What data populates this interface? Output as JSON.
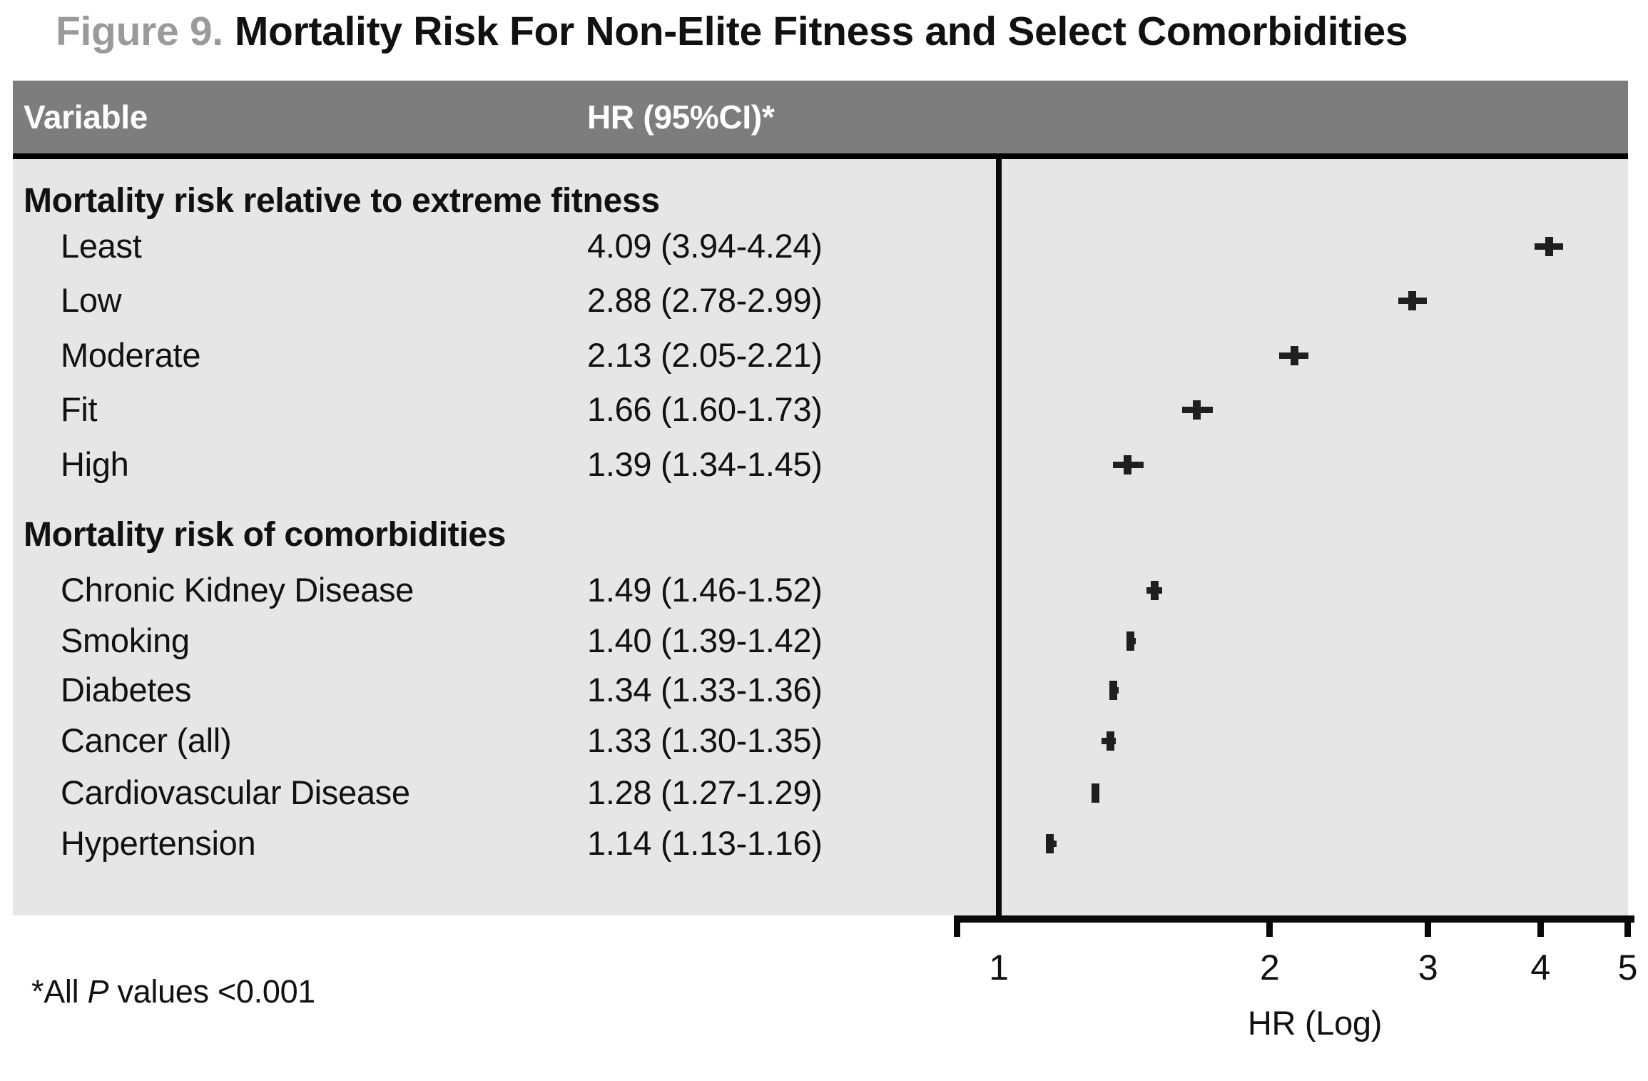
{
  "title": {
    "figure_label": "Figure 9.",
    "text": "Mortality Risk For Non-Elite Fitness and Select Comorbidities"
  },
  "table": {
    "col1_header": "Variable",
    "col2_header": "HR (95%CI)*"
  },
  "footnote": {
    "prefix": "*All ",
    "italic_word": "P",
    "suffix": " values <0.001"
  },
  "chart_data": {
    "type": "scatter",
    "variant": "forest-plot",
    "x_scale": "log10",
    "xlabel": "HR (Log)",
    "xlim": [
      1,
      5
    ],
    "x_ticks": [
      1,
      2,
      3,
      4,
      5
    ],
    "reference_value": 1,
    "grid": "off",
    "sections": [
      {
        "header": "Mortality risk relative to extreme fitness",
        "rows": [
          {
            "label": "Least",
            "hr_text": "4.09 (3.94-4.24)",
            "hr": 4.09,
            "ci_low": 3.94,
            "ci_high": 4.24
          },
          {
            "label": "Low",
            "hr_text": "2.88 (2.78-2.99)",
            "hr": 2.88,
            "ci_low": 2.78,
            "ci_high": 2.99
          },
          {
            "label": "Moderate",
            "hr_text": "2.13 (2.05-2.21)",
            "hr": 2.13,
            "ci_low": 2.05,
            "ci_high": 2.21
          },
          {
            "label": "Fit",
            "hr_text": "1.66 (1.60-1.73)",
            "hr": 1.66,
            "ci_low": 1.6,
            "ci_high": 1.73
          },
          {
            "label": "High",
            "hr_text": "1.39 (1.34-1.45)",
            "hr": 1.39,
            "ci_low": 1.34,
            "ci_high": 1.45
          }
        ]
      },
      {
        "header": "Mortality risk of comorbidities",
        "rows": [
          {
            "label": "Chronic Kidney Disease",
            "hr_text": "1.49 (1.46-1.52)",
            "hr": 1.49,
            "ci_low": 1.46,
            "ci_high": 1.52
          },
          {
            "label": "Smoking",
            "hr_text": "1.40 (1.39-1.42)",
            "hr": 1.4,
            "ci_low": 1.39,
            "ci_high": 1.42
          },
          {
            "label": "Diabetes",
            "hr_text": "1.34 (1.33-1.36)",
            "hr": 1.34,
            "ci_low": 1.33,
            "ci_high": 1.36
          },
          {
            "label": "Cancer (all)",
            "hr_text": "1.33 (1.30-1.35)",
            "hr": 1.33,
            "ci_low": 1.3,
            "ci_high": 1.35
          },
          {
            "label": "Cardiovascular Disease",
            "hr_text": "1.28 (1.27-1.29)",
            "hr": 1.28,
            "ci_low": 1.27,
            "ci_high": 1.29
          },
          {
            "label": "Hypertension",
            "hr_text": "1.14 (1.13-1.16)",
            "hr": 1.14,
            "ci_low": 1.13,
            "ci_high": 1.16
          }
        ]
      }
    ],
    "colors": {
      "figure_label_gray": "#9a9a9a",
      "title_text": "#111111",
      "header_bar": "#7d7d7d",
      "header_text": "#ffffff",
      "panel_bg": "#e6e6e6",
      "marker": "#1f1f1f",
      "line": "#0a0a0a"
    }
  }
}
